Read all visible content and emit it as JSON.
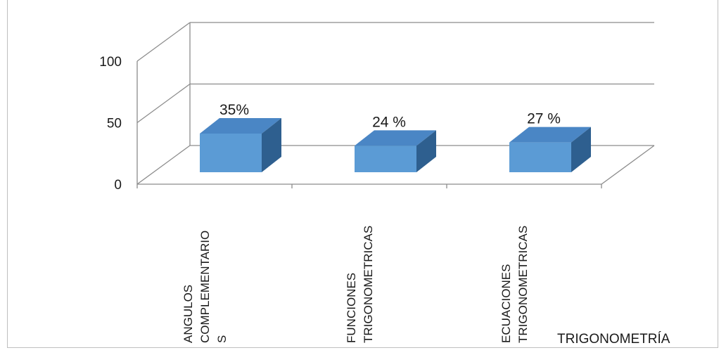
{
  "chart_data": {
    "type": "bar",
    "style": "3d",
    "categories": [
      "ANGULOS COMPLEMENTARIOS",
      "FUNCIONES TRIGONOMETRICAS",
      "ECUACIONES TRIGONOMETRICAS"
    ],
    "category_label_lines": [
      [
        "ANGULOS",
        "COMPLEMENTARIO",
        "S"
      ],
      [
        "FUNCIONES",
        "TRIGONOMETRICAS"
      ],
      [
        "ECUACIONES",
        "TRIGONOMETRICAS"
      ]
    ],
    "series": [
      {
        "values": [
          35,
          24,
          27
        ],
        "data_labels": [
          "35%",
          "24 %",
          "27 %"
        ]
      }
    ],
    "y_ticks": [
      "0",
      "50",
      "100"
    ],
    "ylim": [
      0,
      100
    ],
    "legend": "TRIGONOMETRÍA",
    "legend_position": "bottom-right",
    "grid": true,
    "colors": {
      "front": "#5b9bd5",
      "top": "#4a86c5",
      "side": "#2e5f8f",
      "grid": "#8c8c8c",
      "frame": "#bfbfbf"
    }
  }
}
